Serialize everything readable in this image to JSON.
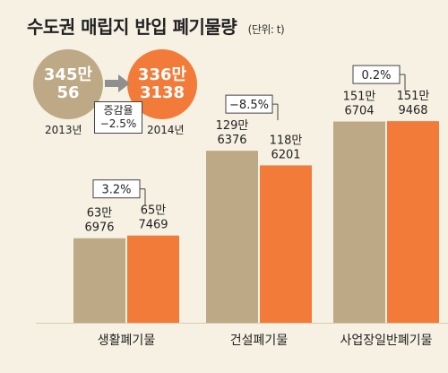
{
  "title": "수도권 매립지 반입 폐기물량",
  "unit": "(단위: t)",
  "total": {
    "y2013": {
      "year": "2013년",
      "line1": "345만",
      "line2": "56"
    },
    "y2014": {
      "year": "2014년",
      "line1": "336만",
      "line2": "3138"
    },
    "change_label": "증감율",
    "change_value": "−2.5%"
  },
  "colors": {
    "y2013": "#bda985",
    "y2014": "#f27b3a",
    "background": "#f6f1e3"
  },
  "chart_data": {
    "type": "bar",
    "title": "수도권 매립지 반입 폐기물량",
    "unit": "(단위: t)",
    "categories": [
      "생활폐기물",
      "건설폐기물",
      "사업장일반폐기물"
    ],
    "series": [
      {
        "name": "2013년",
        "values": [
          636976,
          1296376,
          1516704
        ],
        "labels": [
          [
            "63만",
            "6976"
          ],
          [
            "129만",
            "6376"
          ],
          [
            "151만",
            "6704"
          ]
        ]
      },
      {
        "name": "2014년",
        "values": [
          657469,
          1186201,
          1519468
        ],
        "labels": [
          [
            "65만",
            "7469"
          ],
          [
            "118만",
            "6201"
          ],
          [
            "151만",
            "9468"
          ]
        ]
      }
    ],
    "changes": [
      "3.2%",
      "−8.5%",
      "0.2%"
    ],
    "ylim": [
      0,
      1600000
    ]
  }
}
